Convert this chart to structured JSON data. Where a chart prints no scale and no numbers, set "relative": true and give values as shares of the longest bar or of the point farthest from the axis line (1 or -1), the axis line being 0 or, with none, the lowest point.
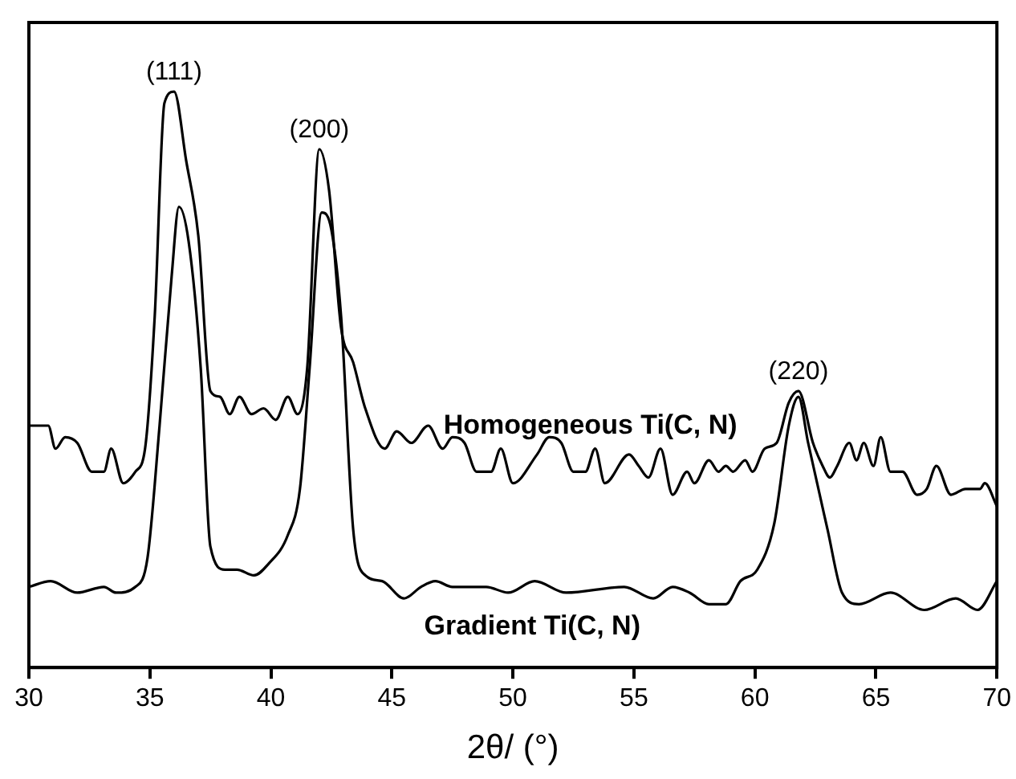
{
  "chart_data": {
    "type": "line",
    "xlabel": "2θ/ (°)",
    "relative": true,
    "xlim": [
      30,
      70
    ],
    "xticks": [
      30,
      35,
      40,
      45,
      50,
      55,
      60,
      65,
      70
    ],
    "legend": false,
    "marker": "none",
    "grid": false,
    "annotations": [
      {
        "text": "(111)",
        "x": 36.0,
        "y": 1.0
      },
      {
        "text": "(200)",
        "x": 42.0,
        "y": 0.9
      },
      {
        "text": "(220)",
        "x": 61.8,
        "y": 0.48
      }
    ],
    "series": [
      {
        "name": "Homogeneous Ti(C, N)",
        "color": "#000000",
        "x": [
          30.0,
          30.8,
          31.1,
          31.5,
          32.0,
          32.6,
          33.1,
          33.4,
          33.9,
          34.4,
          34.8,
          35.2,
          35.6,
          36.0,
          36.5,
          37.0,
          37.5,
          37.9,
          38.3,
          38.7,
          39.2,
          39.7,
          40.2,
          40.7,
          41.1,
          41.5,
          42.0,
          42.4,
          42.9,
          43.4,
          43.9,
          44.7,
          45.2,
          45.8,
          46.5,
          47.1,
          47.5,
          48.0,
          48.5,
          49.1,
          49.5,
          50.0,
          51.0,
          51.5,
          52.0,
          52.5,
          53.0,
          53.4,
          53.8,
          54.8,
          55.2,
          55.6,
          56.1,
          56.6,
          57.2,
          57.5,
          58.1,
          58.5,
          58.8,
          59.1,
          59.6,
          59.9,
          60.4,
          60.9,
          61.4,
          61.8,
          62.4,
          62.8,
          63.1,
          63.4,
          63.9,
          64.2,
          64.5,
          64.9,
          65.2,
          65.6,
          66.1,
          66.7,
          67.1,
          67.5,
          68.1,
          68.7,
          69.3,
          69.5,
          70.0
        ],
        "values": [
          0.42,
          0.42,
          0.38,
          0.4,
          0.39,
          0.34,
          0.34,
          0.38,
          0.32,
          0.34,
          0.38,
          0.61,
          0.98,
          1.0,
          0.88,
          0.75,
          0.48,
          0.47,
          0.44,
          0.47,
          0.44,
          0.45,
          0.43,
          0.47,
          0.44,
          0.52,
          0.9,
          0.83,
          0.59,
          0.53,
          0.45,
          0.38,
          0.41,
          0.39,
          0.42,
          0.38,
          0.4,
          0.39,
          0.34,
          0.34,
          0.38,
          0.32,
          0.37,
          0.4,
          0.39,
          0.34,
          0.34,
          0.38,
          0.32,
          0.37,
          0.35,
          0.33,
          0.38,
          0.3,
          0.34,
          0.32,
          0.36,
          0.34,
          0.35,
          0.34,
          0.36,
          0.34,
          0.38,
          0.39,
          0.46,
          0.48,
          0.39,
          0.35,
          0.33,
          0.35,
          0.39,
          0.36,
          0.39,
          0.35,
          0.4,
          0.34,
          0.34,
          0.3,
          0.31,
          0.35,
          0.3,
          0.31,
          0.31,
          0.32,
          0.28
        ]
      },
      {
        "name": "Gradient Ti(C, N)",
        "color": "#000000",
        "x": [
          30.0,
          30.9,
          32.0,
          33.1,
          33.6,
          34.4,
          34.9,
          35.4,
          35.9,
          36.2,
          36.6,
          37.1,
          37.5,
          38.1,
          38.6,
          39.3,
          39.9,
          40.7,
          41.2,
          41.6,
          42.1,
          42.5,
          42.9,
          43.4,
          43.9,
          44.6,
          45.5,
          46.2,
          46.8,
          47.5,
          48.9,
          49.8,
          50.9,
          52.2,
          54.6,
          55.8,
          56.6,
          57.3,
          58.1,
          58.8,
          59.4,
          60.1,
          60.8,
          61.4,
          61.8,
          62.2,
          63.0,
          63.6,
          64.3,
          65.6,
          67.0,
          68.3,
          69.2,
          70.0
        ],
        "values": [
          0.14,
          0.15,
          0.13,
          0.14,
          0.13,
          0.14,
          0.19,
          0.42,
          0.68,
          0.8,
          0.74,
          0.52,
          0.21,
          0.17,
          0.17,
          0.16,
          0.18,
          0.23,
          0.31,
          0.52,
          0.79,
          0.76,
          0.61,
          0.24,
          0.16,
          0.15,
          0.12,
          0.14,
          0.15,
          0.14,
          0.14,
          0.13,
          0.15,
          0.13,
          0.14,
          0.12,
          0.14,
          0.13,
          0.11,
          0.11,
          0.15,
          0.17,
          0.25,
          0.42,
          0.47,
          0.39,
          0.24,
          0.13,
          0.11,
          0.13,
          0.1,
          0.12,
          0.1,
          0.15
        ]
      }
    ]
  }
}
